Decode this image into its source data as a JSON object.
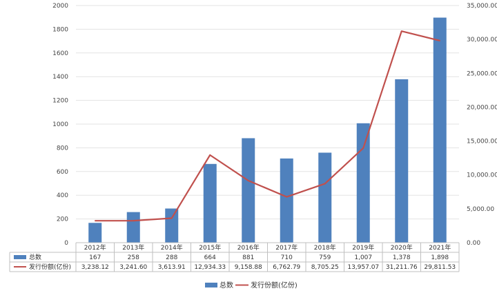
{
  "chart_data": {
    "type": "bar",
    "categories": [
      "2012年",
      "2013年",
      "2014年",
      "2015年",
      "2016年",
      "2017年",
      "2018年",
      "2019年",
      "2020年",
      "2021年"
    ],
    "series": [
      {
        "name": "总数",
        "type": "bar",
        "axis": "left",
        "color": "#4f81bd",
        "values": [
          167,
          258,
          288,
          664,
          881,
          710,
          759,
          1007,
          1378,
          1898
        ],
        "labels": [
          "167",
          "258",
          "288",
          "664",
          "881",
          "710",
          "759",
          "1,007",
          "1,378",
          "1,898"
        ]
      },
      {
        "name": "发行份额(亿份)",
        "type": "line",
        "axis": "right",
        "color": "#c0504d",
        "values": [
          3238.12,
          3241.6,
          3613.91,
          12934.33,
          9158.88,
          6762.79,
          8705.25,
          13957.07,
          31211.76,
          29811.53
        ],
        "labels": [
          "3,238.12",
          "3,241.60",
          "3,613.91",
          "12,934.33",
          "9,158.88",
          "6,762.79",
          "8,705.25",
          "13,957.07",
          "31,211.76",
          "29,811.53"
        ]
      }
    ],
    "left_axis": {
      "ylim": [
        0,
        2000
      ],
      "ticks": [
        0,
        200,
        400,
        600,
        800,
        1000,
        1200,
        1400,
        1600,
        1800,
        2000
      ],
      "tick_labels": [
        "0",
        "200",
        "400",
        "600",
        "800",
        "1000",
        "1200",
        "1400",
        "1600",
        "1800",
        "2000"
      ]
    },
    "right_axis": {
      "ylim": [
        0,
        35000
      ],
      "ticks": [
        0,
        5000,
        10000,
        15000,
        20000,
        25000,
        30000,
        35000
      ],
      "tick_labels": [
        "0.00",
        "5,000.00",
        "10,000.00",
        "15,000.00",
        "20,000.00",
        "25,000.00",
        "30,000.00",
        "35,000.00"
      ]
    },
    "grid": true,
    "legend": "bottom",
    "data_table": true
  }
}
